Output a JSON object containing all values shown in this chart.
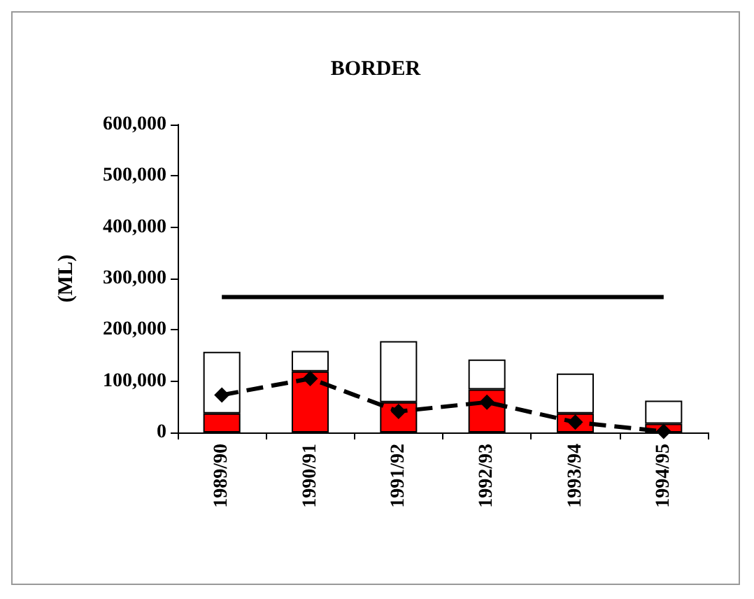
{
  "chart_data": {
    "type": "bar",
    "title": "BORDER",
    "ylabel": "(ML)",
    "categories": [
      "1989/90",
      "1990/91",
      "1991/92",
      "1992/93",
      "1993/94",
      "1994/95"
    ],
    "stacked": true,
    "series": [
      {
        "color": "#ff0000",
        "values": [
          37000,
          119000,
          59000,
          84000,
          37000,
          17000
        ]
      },
      {
        "color": "#ffffff",
        "values": [
          120000,
          40000,
          119000,
          58000,
          78000,
          45000
        ]
      },
      {
        "type": "line",
        "color": "#000000",
        "line_style": "solid",
        "marker": "none",
        "values": [
          264000,
          264000,
          264000,
          264000,
          264000,
          264000
        ]
      },
      {
        "type": "line",
        "color": "#000000",
        "line_style": "dashed",
        "marker": "diamond",
        "values": [
          73000,
          105000,
          41000,
          59000,
          20000,
          2000
        ]
      }
    ],
    "ylim": [
      0,
      600000
    ],
    "yticks": [
      0,
      {
        "value": 100000,
        "label": "100,000"
      },
      {
        "value": 200000,
        "label": "200,000"
      },
      {
        "value": 300000,
        "label": "300,000"
      },
      {
        "value": 400000,
        "label": "400,000"
      },
      {
        "value": 500000,
        "label": "500,000"
      },
      {
        "value": 600000,
        "label": "600,000"
      }
    ],
    "grid": false
  }
}
